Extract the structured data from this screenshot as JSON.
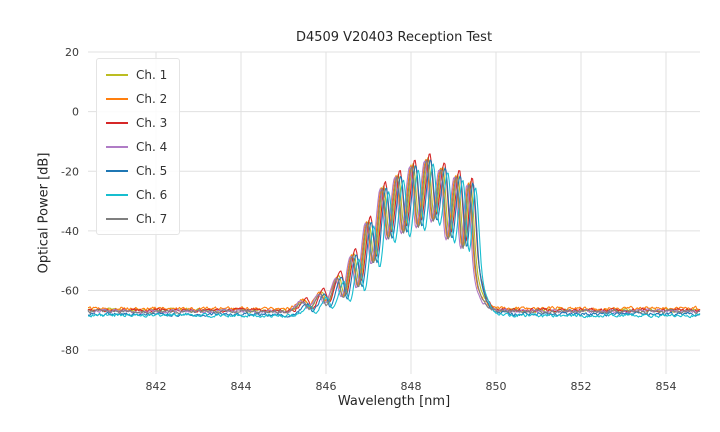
{
  "chart_data": {
    "type": "line",
    "title": "D4509 V20403 Reception Test",
    "xlabel": "Wavelength [nm]",
    "ylabel": "Optical Power [dB]",
    "xlim": [
      840.4,
      854.8
    ],
    "ylim": [
      -88,
      20
    ],
    "xticks": [
      842,
      844,
      846,
      848,
      850,
      852,
      854
    ],
    "yticks": [
      20,
      0,
      -20,
      -40,
      -60,
      -80
    ],
    "grid": true,
    "grid_color": "#e0e0e0",
    "legend_position": "upper left",
    "noise_floor_db": -67,
    "signal_band_nm": [
      845.5,
      850.0
    ],
    "envelope_points": [
      [
        840.4,
        -67
      ],
      [
        842.0,
        -67
      ],
      [
        844.0,
        -67
      ],
      [
        845.2,
        -67
      ],
      [
        845.5,
        -63.5
      ],
      [
        845.65,
        -66
      ],
      [
        845.9,
        -60.5
      ],
      [
        846.05,
        -64.5
      ],
      [
        846.3,
        -55
      ],
      [
        846.45,
        -62
      ],
      [
        846.65,
        -47.5
      ],
      [
        846.8,
        -58
      ],
      [
        847.0,
        -36.5
      ],
      [
        847.15,
        -50
      ],
      [
        847.35,
        -25
      ],
      [
        847.5,
        -42
      ],
      [
        847.7,
        -21
      ],
      [
        847.85,
        -40
      ],
      [
        848.05,
        -17.5
      ],
      [
        848.2,
        -38
      ],
      [
        848.4,
        -15.5
      ],
      [
        848.55,
        -36
      ],
      [
        848.75,
        -18.5
      ],
      [
        848.9,
        -42
      ],
      [
        849.1,
        -21
      ],
      [
        849.25,
        -45
      ],
      [
        849.4,
        -23.5
      ],
      [
        849.55,
        -52
      ],
      [
        849.7,
        -62
      ],
      [
        849.9,
        -66
      ],
      [
        850.3,
        -67
      ],
      [
        852.0,
        -67
      ],
      [
        854.8,
        -67
      ]
    ],
    "series": [
      {
        "name": "Ch. 1",
        "color": "#bcbd22",
        "x_offset": 0.0,
        "y_offset": 0.0,
        "floor_offset": 0.4,
        "seed": 11
      },
      {
        "name": "Ch. 2",
        "color": "#ff7f0e",
        "x_offset": -0.05,
        "y_offset": -0.5,
        "floor_offset": 1.0,
        "seed": 22
      },
      {
        "name": "Ch. 3",
        "color": "#d62728",
        "x_offset": 0.04,
        "y_offset": 1.5,
        "floor_offset": 0.4,
        "seed": 33
      },
      {
        "name": "Ch. 4",
        "color": "#b07cc6",
        "x_offset": -0.08,
        "y_offset": -1.0,
        "floor_offset": 0.1,
        "seed": 44
      },
      {
        "name": "Ch. 5",
        "color": "#1f77b4",
        "x_offset": 0.06,
        "y_offset": -0.5,
        "floor_offset": -0.9,
        "seed": 55
      },
      {
        "name": "Ch. 6",
        "color": "#17becf",
        "x_offset": 0.12,
        "y_offset": -2.0,
        "floor_offset": -1.3,
        "seed": 66
      },
      {
        "name": "Ch. 7",
        "color": "#7f7f7f",
        "x_offset": -0.03,
        "y_offset": -0.8,
        "floor_offset": 0.0,
        "seed": 77
      }
    ]
  }
}
